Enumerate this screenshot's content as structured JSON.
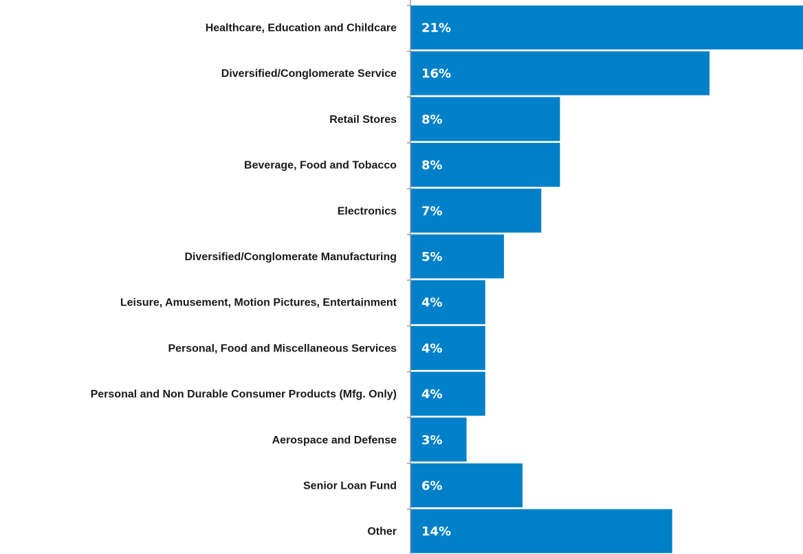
{
  "chart_data": {
    "type": "bar",
    "orientation": "horizontal",
    "title": "",
    "xlabel": "",
    "ylabel": "",
    "categories": [
      "Healthcare, Education and Childcare",
      "Diversified/Conglomerate Service",
      "Retail Stores",
      "Beverage, Food and Tobacco",
      "Electronics",
      "Diversified/Conglomerate Manufacturing",
      "Leisure, Amusement, Motion Pictures, Entertainment",
      "Personal, Food and Miscellaneous Services",
      "Personal and Non Durable Consumer Products (Mfg. Only)",
      "Aerospace and Defense",
      "Senior Loan Fund",
      "Other"
    ],
    "values": [
      21,
      16,
      8,
      8,
      7,
      5,
      4,
      4,
      4,
      3,
      6,
      14
    ],
    "value_labels": [
      "21%",
      "16%",
      "8%",
      "8%",
      "7%",
      "5%",
      "4%",
      "4%",
      "4%",
      "3%",
      "6%",
      "14%"
    ],
    "xlim": [
      0,
      21
    ],
    "grid": false,
    "legend": "none",
    "colors": {
      "bar": "#0080C8",
      "axis": "#9a9a9a",
      "category_text": "#1a1a1a",
      "value_text": "#ffffff"
    }
  }
}
